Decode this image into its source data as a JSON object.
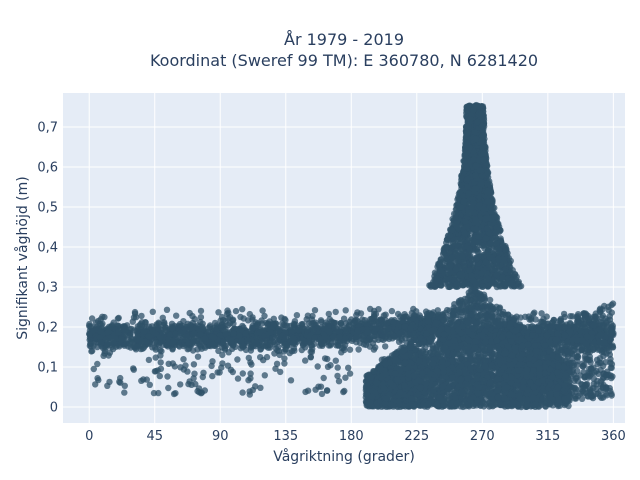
{
  "chart_data": {
    "type": "scatter",
    "title_line1": "År 1979 - 2019",
    "title_line2": "Koordinat (Sweref 99 TM): E 360780, N 6281420",
    "xlabel": "Vågriktning (grader)",
    "ylabel": "Signifikant våghöjd (m)",
    "xlim": [
      -18,
      368
    ],
    "ylim": [
      -0.04,
      0.785
    ],
    "x_ticks": [
      0,
      45,
      90,
      135,
      180,
      225,
      270,
      315,
      360
    ],
    "x_tick_labels": [
      "0",
      "45",
      "90",
      "135",
      "180",
      "225",
      "270",
      "315",
      "360"
    ],
    "y_ticks": [
      0,
      0.1,
      0.2,
      0.3,
      0.4,
      0.5,
      0.6,
      0.7
    ],
    "y_tick_labels": [
      "0",
      "0,1",
      "0,2",
      "0,3",
      "0,4",
      "0,5",
      "0,6",
      "0,7"
    ],
    "background": "#e5ecf6",
    "marker_color": "#2f5168",
    "point_density_bands": [
      {
        "x_range": [
          0,
          360
        ],
        "y_range": [
          0.12,
          0.24
        ],
        "note": "continuous band"
      },
      {
        "x_range": [
          190,
          330
        ],
        "y_range": [
          0.0,
          0.3
        ]
      },
      {
        "x_range": [
          245,
          285
        ],
        "y_range": [
          0.3,
          0.6
        ]
      },
      {
        "x_range": [
          257,
          273
        ],
        "y_range": [
          0.6,
          0.75
        ]
      }
    ],
    "peak": {
      "x": 265,
      "y": 0.75
    }
  }
}
